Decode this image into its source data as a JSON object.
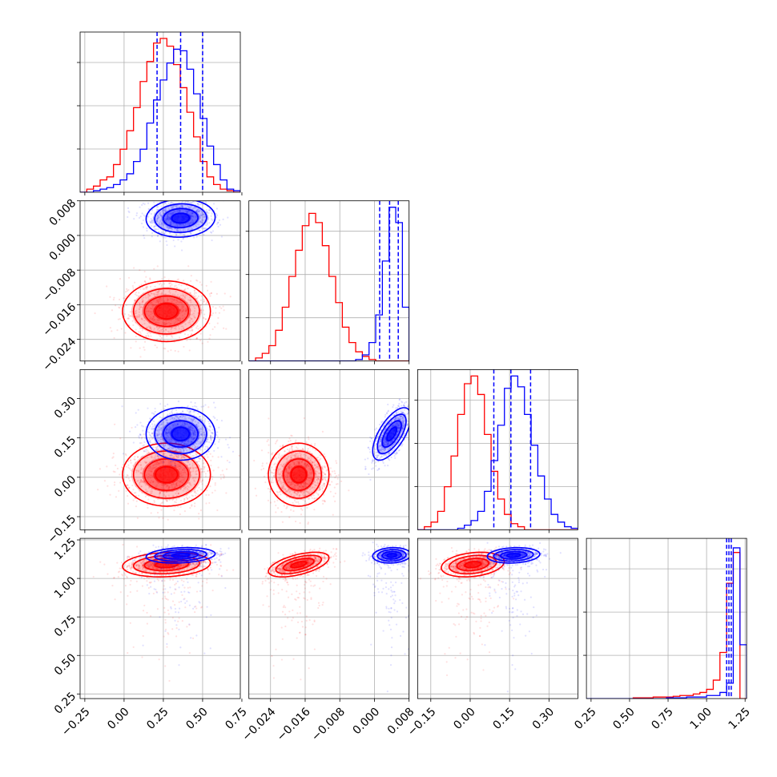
{
  "chart_data": {
    "type": "corner",
    "parameters": 4,
    "grid": true,
    "series": [
      {
        "color": "#ff0000",
        "mean": [
          0.27,
          -0.0175,
          0.01,
          1.09
        ],
        "sd": [
          0.14,
          0.0035,
          0.06,
          0.04
        ],
        "rho": [
          [
            1,
            0,
            0,
            0.15
          ],
          [
            0,
            1,
            0,
            0.55
          ],
          [
            0,
            0,
            1,
            0.25
          ],
          [
            0.15,
            0.55,
            0.25,
            1
          ]
        ]
      },
      {
        "color": "#0000ff",
        "mean": [
          0.36,
          0.004,
          0.165,
          1.15
        ],
        "sd": [
          0.11,
          0.0022,
          0.05,
          0.025
        ],
        "rho": [
          [
            1,
            0.05,
            0,
            0.2
          ],
          [
            0.05,
            1,
            0.65,
            0.1
          ],
          [
            0,
            0.65,
            1,
            0.15
          ],
          [
            0.2,
            0.1,
            0.15,
            1
          ]
        ]
      }
    ],
    "quantiles": [
      [
        0.21,
        0.36,
        0.5
      ],
      [
        0.0012,
        0.0035,
        0.0055
      ],
      [
        0.09,
        0.155,
        0.23
      ],
      [
        1.13,
        1.145,
        1.16
      ]
    ],
    "histograms": [
      {
        "edges": [
          -0.28,
          0.74
        ],
        "red": [
          0,
          0.02,
          0.04,
          0.08,
          0.1,
          0.18,
          0.28,
          0.4,
          0.55,
          0.72,
          0.85,
          0.97,
          1.0,
          0.95,
          0.83,
          0.68,
          0.52,
          0.36,
          0.2,
          0.1,
          0.05,
          0.02,
          0.01,
          0.0
        ],
        "blue": [
          0,
          0,
          0.01,
          0.02,
          0.03,
          0.05,
          0.08,
          0.12,
          0.2,
          0.28,
          0.45,
          0.6,
          0.73,
          0.84,
          0.93,
          0.92,
          0.8,
          0.64,
          0.48,
          0.3,
          0.18,
          0.08,
          0.02,
          0.01
        ]
      },
      {
        "edges": [
          -0.029,
          0.008
        ],
        "red": [
          0,
          0.02,
          0.05,
          0.1,
          0.2,
          0.35,
          0.55,
          0.72,
          0.88,
          0.96,
          0.9,
          0.75,
          0.55,
          0.38,
          0.22,
          0.12,
          0.06,
          0.03,
          0.01,
          0,
          0,
          0,
          0,
          0
        ],
        "blue": [
          0,
          0,
          0,
          0,
          0,
          0,
          0,
          0,
          0,
          0,
          0,
          0,
          0,
          0,
          0,
          0,
          0.01,
          0.04,
          0.12,
          0.3,
          0.65,
          1.0,
          0.9,
          0.35
        ]
      },
      {
        "edges": [
          -0.2,
          0.41
        ],
        "red": [
          0,
          0.02,
          0.05,
          0.12,
          0.28,
          0.48,
          0.75,
          0.95,
          1.0,
          0.88,
          0.62,
          0.38,
          0.2,
          0.1,
          0.04,
          0.02,
          0,
          0,
          0,
          0,
          0,
          0,
          0,
          0
        ],
        "blue": [
          0,
          0,
          0,
          0,
          0,
          0,
          0.01,
          0.03,
          0.06,
          0.12,
          0.25,
          0.45,
          0.68,
          0.92,
          1.0,
          0.93,
          0.75,
          0.55,
          0.35,
          0.2,
          0.1,
          0.05,
          0.02,
          0.01
        ]
      },
      {
        "edges": [
          0.22,
          1.26
        ],
        "red": [
          0,
          0,
          0,
          0,
          0,
          0,
          0,
          0.005,
          0.005,
          0.005,
          0.01,
          0.01,
          0.01,
          0.015,
          0.02,
          0.02,
          0.03,
          0.04,
          0.06,
          0.12,
          0.3,
          0.75,
          0.95,
          0
        ],
        "blue": [
          0,
          0,
          0,
          0,
          0,
          0,
          0,
          0,
          0,
          0,
          0,
          0,
          0.005,
          0.005,
          0.005,
          0.01,
          0.01,
          0.01,
          0.02,
          0.02,
          0.04,
          0.1,
          0.98,
          0.35
        ]
      }
    ],
    "axes": [
      {
        "lim": [
          -0.28,
          0.74
        ],
        "ticks": [
          -0.25,
          0.0,
          0.25,
          0.5,
          0.75
        ],
        "ticklabels": [
          "−0.25",
          "0.00",
          "0.25",
          "0.50",
          "0.75"
        ]
      },
      {
        "lim": [
          -0.029,
          0.008
        ],
        "ticks": [
          -0.024,
          -0.016,
          -0.008,
          0.0,
          0.008
        ],
        "ticklabels": [
          "−0.024",
          "−0.016",
          "−0.008",
          "0.000",
          "0.008"
        ]
      },
      {
        "lim": [
          -0.2,
          0.41
        ],
        "ticks": [
          -0.15,
          0.0,
          0.15,
          0.3
        ],
        "ticklabels": [
          "−0.15",
          "0.00",
          "0.15",
          "0.30"
        ]
      },
      {
        "lim": [
          0.22,
          1.26
        ],
        "ticks": [
          0.25,
          0.5,
          0.75,
          1.0,
          1.25
        ],
        "ticklabels": [
          "0.25",
          "0.50",
          "0.75",
          "1.00",
          "1.25"
        ]
      }
    ]
  }
}
